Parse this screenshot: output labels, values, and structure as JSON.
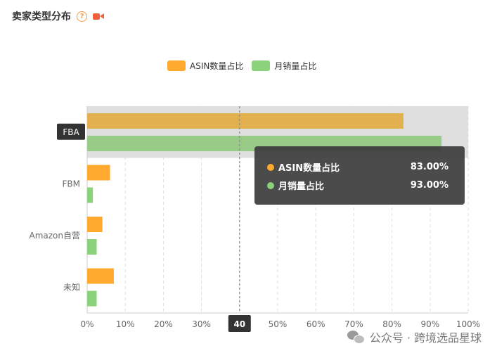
{
  "header": {
    "title": "卖家类型分布",
    "help_glyph": "?"
  },
  "legend": [
    {
      "label": "ASIN数量占比",
      "color": "#ffaa2f"
    },
    {
      "label": "月销量占比",
      "color": "#8bd27a"
    }
  ],
  "tooltip": {
    "rows": [
      {
        "name": "ASIN数量占比",
        "value": "83.00%",
        "color": "#ffaa2f"
      },
      {
        "name": "月销量占比",
        "value": "93.00%",
        "color": "#8bd27a"
      }
    ]
  },
  "chart_data": {
    "type": "bar",
    "orientation": "horizontal",
    "categories": [
      "FBA",
      "FBM",
      "Amazon自营",
      "未知"
    ],
    "series": [
      {
        "name": "ASIN数量占比",
        "color": "#ffaa2f",
        "values": [
          83,
          6,
          4,
          7
        ]
      },
      {
        "name": "月销量占比",
        "color": "#8bd27a",
        "values": [
          93,
          1.5,
          2.5,
          2.5
        ]
      }
    ],
    "xlim": [
      0,
      100
    ],
    "x_ticks": [
      "0%",
      "10%",
      "20%",
      "30%",
      "40%",
      "50%",
      "60%",
      "70%",
      "80%",
      "90%",
      "100%"
    ],
    "grid": "dashed-vertical",
    "highlight_category": "FBA",
    "crosshair_label": "40",
    "legend_position": "top"
  },
  "watermark": {
    "text": "公众号 · 跨境选品星球"
  }
}
